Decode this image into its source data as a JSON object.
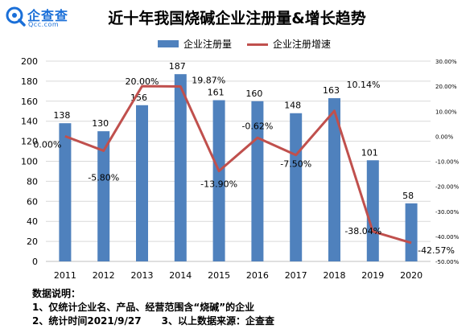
{
  "brand": {
    "name": "企查查",
    "url": "Qcc.com",
    "color": "#1a6fd8"
  },
  "colors": {
    "bars": "#4f81bd",
    "line": "#c0504d",
    "grid": "#d9d9d9",
    "axis": "#bfbfbf"
  },
  "chart_data": {
    "type": "bar",
    "title": "近十年我国烧碱企业注册量&增长趋势",
    "categories": [
      "2011",
      "2012",
      "2013",
      "2014",
      "2015",
      "2016",
      "2017",
      "2018",
      "2019",
      "2020"
    ],
    "series": [
      {
        "name": "企业注册量",
        "type": "bar",
        "axis": "left",
        "values": [
          138,
          130,
          156,
          187,
          161,
          160,
          148,
          163,
          101,
          58
        ],
        "labels": [
          "138",
          "130",
          "156",
          "187",
          "161",
          "160",
          "148",
          "163",
          "101",
          "58"
        ]
      },
      {
        "name": "企业注册增速",
        "type": "line",
        "axis": "right",
        "values": [
          0.0,
          -5.8,
          20.0,
          19.87,
          -13.9,
          -0.62,
          -7.5,
          10.14,
          -38.04,
          -42.57
        ],
        "labels": [
          "0.00%",
          "-5.80%",
          "20.00%",
          "19.87%",
          "-13.90%",
          "-0.62%",
          "-7.50%",
          "10.14%",
          "-38.04%",
          "-42.57%"
        ]
      }
    ],
    "y_left": {
      "min": 0,
      "max": 200,
      "ticks": [
        "0",
        "20",
        "40",
        "60",
        "80",
        "100",
        "120",
        "140",
        "160",
        "180",
        "200"
      ]
    },
    "y_right": {
      "min": -50,
      "max": 30,
      "ticks": [
        "-50.00%",
        "-40.00%",
        "-30.00%",
        "-20.00%",
        "-10.00%",
        "0.00%",
        "10.00%",
        "20.00%",
        "30.00%"
      ]
    },
    "grid": true,
    "legend_position": "top"
  },
  "notes": {
    "heading": "数据说明：",
    "line1": "1、仅统计企业名、产品、经营范围含“烧碱”的企业",
    "line2": "2、统计时间2021/9/27      3、以上数据来源：企查查"
  }
}
